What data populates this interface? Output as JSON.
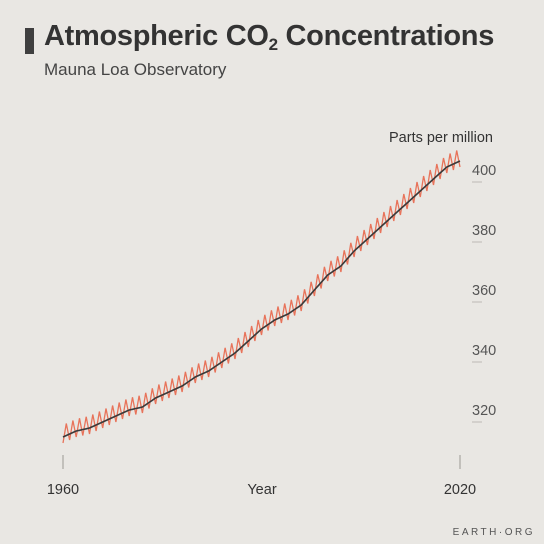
{
  "header": {
    "title_main": "Atmospheric CO",
    "title_sub": "2",
    "title_end": " Concentrations",
    "subtitle": "Mauna Loa Observatory"
  },
  "brand": "EARTH·ORG",
  "chart_data": {
    "type": "line",
    "title": "Atmospheric CO2 Concentrations",
    "subtitle": "Mauna Loa Observatory",
    "xlabel": "Year",
    "ylabel": "Parts per million",
    "xlim": [
      1960,
      2020
    ],
    "ylim": [
      307,
      402
    ],
    "x_ticks": [
      1960,
      2020
    ],
    "y_ticks": [
      320,
      340,
      360,
      380,
      400
    ],
    "grid": false,
    "y_axis_position": "right",
    "series": [
      {
        "kind": "monthly",
        "color": "#e8735a",
        "seasonal_amplitude": 3,
        "x": [
          1960,
          1962,
          1964,
          1966,
          1968,
          1970,
          1972,
          1974,
          1976,
          1978,
          1980,
          1982,
          1984,
          1986,
          1988,
          1990,
          1992,
          1994,
          1996,
          1998,
          2000,
          2002,
          2004,
          2006,
          2008,
          2010,
          2012,
          2014,
          2016,
          2018,
          2020
        ],
        "values": [
          312,
          314,
          315,
          317,
          319,
          321,
          322,
          325,
          327,
          329,
          332,
          334,
          337,
          340,
          344,
          348,
          351,
          353,
          356,
          361,
          366,
          369,
          374,
          378,
          382,
          386,
          390,
          394,
          398,
          402,
          404
        ]
      },
      {
        "kind": "annual-mean",
        "color": "#3a3a3a",
        "x": [
          1960,
          1962,
          1964,
          1966,
          1968,
          1970,
          1972,
          1974,
          1976,
          1978,
          1980,
          1982,
          1984,
          1986,
          1988,
          1990,
          1992,
          1994,
          1996,
          1998,
          2000,
          2002,
          2004,
          2006,
          2008,
          2010,
          2012,
          2014,
          2016,
          2018,
          2020
        ],
        "values": [
          312,
          314,
          315,
          317,
          319,
          321,
          322,
          325,
          327,
          329,
          332,
          334,
          337,
          340,
          344,
          348,
          351,
          353,
          356,
          361,
          366,
          369,
          374,
          378,
          382,
          386,
          390,
          394,
          398,
          402,
          404
        ]
      }
    ]
  }
}
